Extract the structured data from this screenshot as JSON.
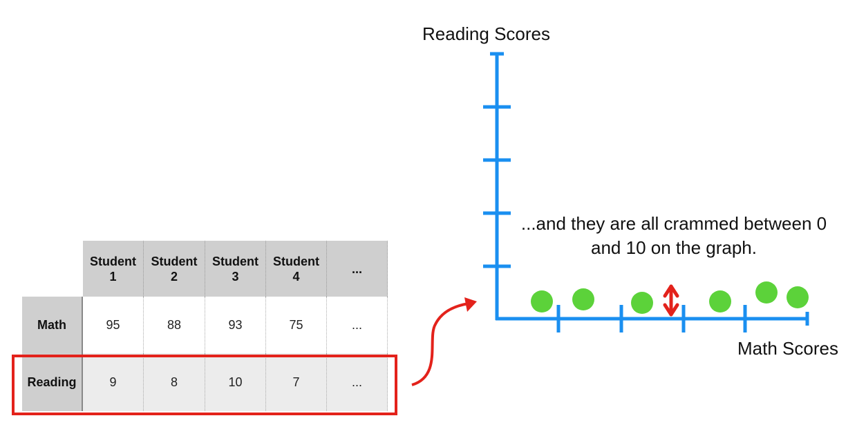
{
  "table": {
    "headers": [
      "Student\n1",
      "Student\n2",
      "Student\n3",
      "Student\n4",
      "..."
    ],
    "rows": [
      {
        "label": "Math",
        "values": [
          "95",
          "88",
          "93",
          "75",
          "..."
        ]
      },
      {
        "label": "Reading",
        "values": [
          "9",
          "8",
          "10",
          "7",
          "..."
        ]
      }
    ],
    "highlighted_row": "Reading"
  },
  "graph": {
    "y_axis_label": "Reading Scores",
    "x_axis_label": "Math Scores",
    "caption": "...and they are all crammed between 0 and 10 on the graph."
  },
  "colors": {
    "axis": "#1a8ff0",
    "points": "#5cd23a",
    "highlight": "#e3221b"
  }
}
